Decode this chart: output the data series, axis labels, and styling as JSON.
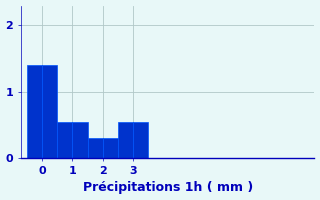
{
  "bar_lefts": [
    -0.5,
    0.0,
    0.5,
    1.0,
    1.5,
    2.0,
    2.5,
    3.0
  ],
  "bar_heights": [
    1.4,
    1.4,
    0.55,
    0.55,
    0.3,
    0.3,
    0.55,
    0.55
  ],
  "bar_width": 0.5,
  "bar_color": "#0033cc",
  "bar_edge_color": "#0055ff",
  "bg_color": "#e8f8f8",
  "grid_color": "#b0c8c8",
  "xlabel": "Précipitations 1h ( mm )",
  "xlabel_color": "#0000bb",
  "xlabel_fontsize": 9,
  "tick_color": "#0000bb",
  "tick_fontsize": 8,
  "yticks": [
    0,
    1,
    2
  ],
  "xtick_positions": [
    0.0,
    1.0,
    2.0,
    3.0
  ],
  "xtick_labels": [
    "0",
    "1",
    "2",
    "3"
  ],
  "xlim": [
    -0.7,
    9.0
  ],
  "ylim": [
    0,
    2.3
  ],
  "figsize": [
    3.2,
    2.0
  ],
  "dpi": 100,
  "spine_color": "#0000bb",
  "bottom_spine_color": "#0000bb"
}
